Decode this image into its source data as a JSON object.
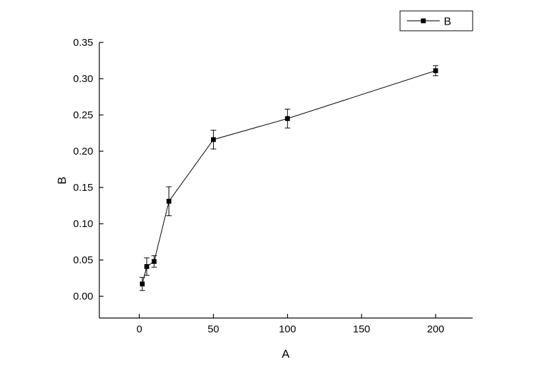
{
  "chart_data": {
    "type": "line",
    "title": "",
    "xlabel": "A",
    "ylabel": "B",
    "x": [
      2,
      5,
      10,
      20,
      50,
      100,
      200
    ],
    "series": [
      {
        "name": "B",
        "values": [
          0.017,
          0.041,
          0.048,
          0.131,
          0.216,
          0.245,
          0.311
        ],
        "errors": [
          0.009,
          0.012,
          0.008,
          0.02,
          0.013,
          0.013,
          0.007
        ]
      }
    ],
    "xticks": [
      0,
      50,
      100,
      150,
      200
    ],
    "yticks": [
      0.0,
      0.05,
      0.1,
      0.15,
      0.2,
      0.25,
      0.3,
      0.35
    ],
    "xlim": [
      -27,
      225
    ],
    "ylim": [
      -0.03,
      0.35
    ],
    "grid": false,
    "legend_position": "top-right-outside",
    "marker": "square"
  },
  "colors": {
    "line": "#000000",
    "marker": "#000000",
    "axis": "#000000",
    "background": "#ffffff"
  }
}
